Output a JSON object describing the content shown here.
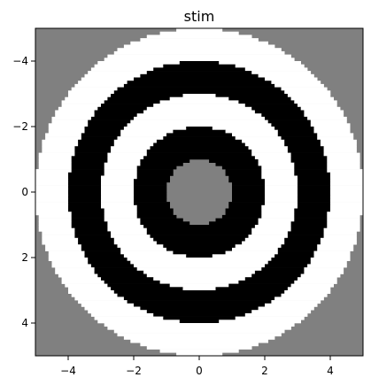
{
  "chart_data": {
    "type": "heatmap",
    "title": "stim",
    "xlabel": "",
    "ylabel": "",
    "xlim": [
      -5,
      5
    ],
    "ylim": [
      5,
      -5
    ],
    "y_inverted": true,
    "grid": false,
    "x_ticks": [
      {
        "value": -4,
        "label": "−4"
      },
      {
        "value": -2,
        "label": "−2"
      },
      {
        "value": 0,
        "label": "0"
      },
      {
        "value": 2,
        "label": "2"
      },
      {
        "value": 4,
        "label": "4"
      }
    ],
    "y_ticks": [
      {
        "value": -4,
        "label": "−4"
      },
      {
        "value": -2,
        "label": "−2"
      },
      {
        "value": 0,
        "label": "0"
      },
      {
        "value": 2,
        "label": "2"
      },
      {
        "value": 4,
        "label": "4"
      }
    ],
    "grid_resolution": 100,
    "background_value": "gray",
    "rings": [
      {
        "r_min": 0,
        "r_max": 1,
        "value": "gray"
      },
      {
        "r_min": 1,
        "r_max": 2,
        "value": "black"
      },
      {
        "r_min": 2,
        "r_max": 3,
        "value": "white"
      },
      {
        "r_min": 3,
        "r_max": 4,
        "value": "black"
      },
      {
        "r_min": 4,
        "r_max": 5,
        "value": "white"
      }
    ],
    "colors": {
      "gray": "#808080",
      "black": "#000000",
      "white": "#ffffff",
      "axes": "#000000"
    }
  }
}
